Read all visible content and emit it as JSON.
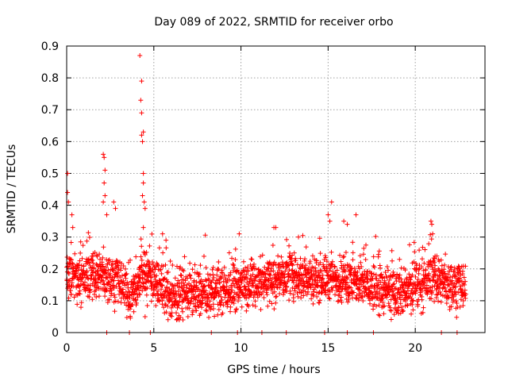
{
  "chart_data": {
    "type": "scatter",
    "title": "Day 089 of 2022, SRMTID for receiver orbo",
    "xlabel": "GPS time / hours",
    "ylabel": "SRMTID / TECUs",
    "xlim": [
      0,
      24
    ],
    "ylim": [
      0,
      0.9
    ],
    "grid": true,
    "marker": "+",
    "color": "#ff0000",
    "x_ticks": [
      0,
      5,
      10,
      15,
      20
    ],
    "x_tick_labels": [
      "0",
      "5",
      "10",
      "15",
      "20"
    ],
    "y_ticks": [
      0,
      0.1,
      0.2,
      0.3,
      0.4,
      0.5,
      0.6,
      0.7,
      0.8,
      0.9
    ],
    "y_tick_labels": [
      "0",
      "0.1",
      "0.2",
      "0.3",
      "0.4",
      "0.5",
      "0.6",
      "0.7",
      "0.8",
      "0.9"
    ],
    "series": [
      {
        "name": "SRMTID",
        "approx_points": 2400,
        "x_range": [
          0,
          22.9
        ],
        "baseline_profile": [
          {
            "x": 0.0,
            "y": 0.17
          },
          {
            "x": 1.0,
            "y": 0.17
          },
          {
            "x": 2.0,
            "y": 0.18
          },
          {
            "x": 3.0,
            "y": 0.16
          },
          {
            "x": 3.7,
            "y": 0.11
          },
          {
            "x": 4.3,
            "y": 0.18
          },
          {
            "x": 5.0,
            "y": 0.17
          },
          {
            "x": 6.0,
            "y": 0.11
          },
          {
            "x": 7.0,
            "y": 0.12
          },
          {
            "x": 8.0,
            "y": 0.12
          },
          {
            "x": 9.0,
            "y": 0.13
          },
          {
            "x": 10.0,
            "y": 0.15
          },
          {
            "x": 11.0,
            "y": 0.16
          },
          {
            "x": 12.0,
            "y": 0.17
          },
          {
            "x": 13.0,
            "y": 0.18
          },
          {
            "x": 14.0,
            "y": 0.17
          },
          {
            "x": 15.0,
            "y": 0.17
          },
          {
            "x": 16.0,
            "y": 0.16
          },
          {
            "x": 17.0,
            "y": 0.15
          },
          {
            "x": 18.0,
            "y": 0.13
          },
          {
            "x": 19.0,
            "y": 0.12
          },
          {
            "x": 20.0,
            "y": 0.14
          },
          {
            "x": 21.0,
            "y": 0.17
          },
          {
            "x": 22.0,
            "y": 0.15
          },
          {
            "x": 22.9,
            "y": 0.14
          }
        ],
        "notable_points": [
          {
            "x": 0.05,
            "y": 0.5
          },
          {
            "x": 0.05,
            "y": 0.44
          },
          {
            "x": 0.1,
            "y": 0.41
          },
          {
            "x": 0.3,
            "y": 0.37
          },
          {
            "x": 0.35,
            "y": 0.33
          },
          {
            "x": 2.1,
            "y": 0.56
          },
          {
            "x": 2.15,
            "y": 0.55
          },
          {
            "x": 2.2,
            "y": 0.51
          },
          {
            "x": 2.15,
            "y": 0.47
          },
          {
            "x": 2.2,
            "y": 0.43
          },
          {
            "x": 2.1,
            "y": 0.41
          },
          {
            "x": 2.3,
            "y": 0.37
          },
          {
            "x": 2.7,
            "y": 0.41
          },
          {
            "x": 2.8,
            "y": 0.39
          },
          {
            "x": 4.2,
            "y": 0.87
          },
          {
            "x": 4.3,
            "y": 0.79
          },
          {
            "x": 4.25,
            "y": 0.73
          },
          {
            "x": 4.3,
            "y": 0.69
          },
          {
            "x": 4.4,
            "y": 0.63
          },
          {
            "x": 4.3,
            "y": 0.62
          },
          {
            "x": 4.35,
            "y": 0.6
          },
          {
            "x": 4.4,
            "y": 0.5
          },
          {
            "x": 4.4,
            "y": 0.47
          },
          {
            "x": 4.35,
            "y": 0.43
          },
          {
            "x": 4.45,
            "y": 0.41
          },
          {
            "x": 4.5,
            "y": 0.39
          },
          {
            "x": 4.4,
            "y": 0.33
          },
          {
            "x": 4.5,
            "y": 0.05
          },
          {
            "x": 15.2,
            "y": 0.41
          },
          {
            "x": 15.0,
            "y": 0.37
          },
          {
            "x": 15.1,
            "y": 0.35
          },
          {
            "x": 15.9,
            "y": 0.35
          },
          {
            "x": 16.1,
            "y": 0.34
          },
          {
            "x": 16.6,
            "y": 0.37
          },
          {
            "x": 20.9,
            "y": 0.35
          },
          {
            "x": 20.95,
            "y": 0.34
          },
          {
            "x": 21.0,
            "y": 0.31
          },
          {
            "x": 5.5,
            "y": 0.31
          },
          {
            "x": 5.7,
            "y": 0.29
          },
          {
            "x": 12.0,
            "y": 0.33
          },
          {
            "x": 9.9,
            "y": 0.31
          },
          {
            "x": 13.3,
            "y": 0.3
          }
        ],
        "zero_points_x": [
          2.3,
          3.6,
          4.8,
          8.3,
          9.8,
          11.2,
          12.6,
          14.8,
          16.1,
          17.6,
          21.5,
          22.4
        ]
      }
    ]
  }
}
